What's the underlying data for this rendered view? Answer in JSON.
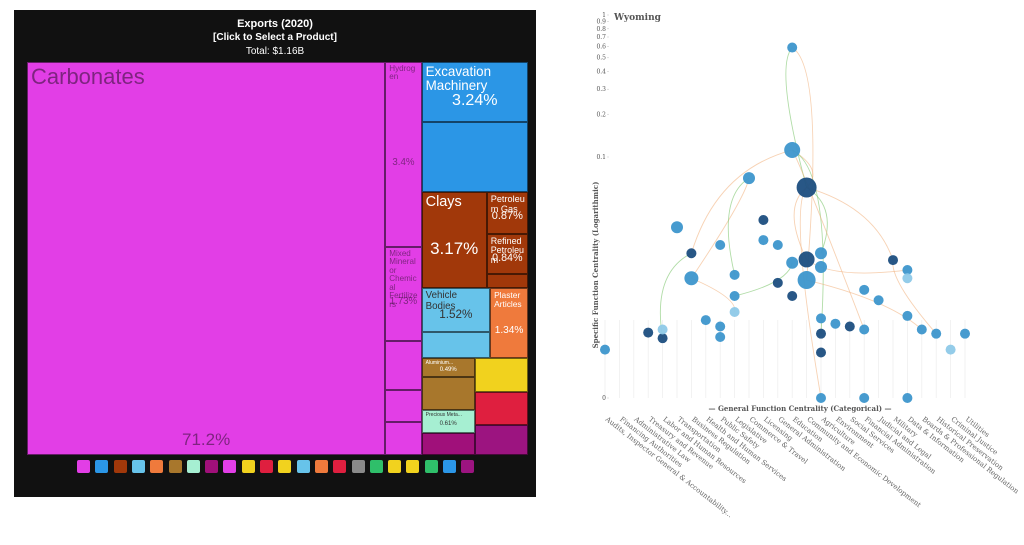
{
  "chart_data": [
    {
      "type": "treemap",
      "title": "Exports (2020)",
      "subtitle": "[Click to Select a Product]",
      "total_label": "Total: $1.16B",
      "categories": [
        "Carbonates",
        "Hydrogen",
        "Mixed Mineral or Chemical Fertilizers",
        null,
        null,
        null,
        "Excavation Machinery",
        null,
        "Clays",
        "Petroleum Gas",
        "Refined Petroleum",
        null,
        "Vehicle Bodies",
        null,
        "Plaster Articles",
        "Aluminium...",
        null,
        "Precious Meta...",
        null,
        null,
        null,
        null
      ],
      "values": [
        71.2,
        3.4,
        1.73,
        0.9,
        0.6,
        0.6,
        3.24,
        3.76,
        3.17,
        0.87,
        0.84,
        0.3,
        1.52,
        0.9,
        1.34,
        0.49,
        0.9,
        0.61,
        0.6,
        0.9,
        0.9,
        0.8
      ],
      "value_labels": [
        "71.2%",
        "3.4%",
        "1.73%",
        null,
        null,
        null,
        "3.24%",
        null,
        "3.17%",
        "0.87%",
        "0.84%",
        null,
        "1.52%",
        null,
        "1.34%",
        "0.49%",
        null,
        "0.61%",
        null,
        null,
        null,
        null
      ],
      "colors": [
        "#e23ee6",
        "#e23ee6",
        "#e23ee6",
        "#e23ee6",
        "#e23ee6",
        "#e23ee6",
        "#2b96e6",
        "#2b96e6",
        "#a1380a",
        "#a1380a",
        "#a1380a",
        "#a1380a",
        "#67c3ea",
        "#67c3ea",
        "#ef7a3c",
        "#a8772c",
        "#a8772c",
        "#a6efd2",
        "#a0107a",
        "#f1d21e",
        "#df1f3f",
        "#9c1480"
      ]
    },
    {
      "type": "scatter",
      "title": "Wyoming",
      "xlabel": "— General Function Centrality (Categorical) —",
      "ylabel": "Specific Function Centrality (Logarithmic)",
      "log_y": true,
      "ylim": [
        0,
        1
      ],
      "yticks": [
        1,
        0.9,
        0.8,
        0.7,
        0.6,
        0.5,
        0.4,
        0.3,
        0.2,
        0.1,
        0
      ],
      "categories": [
        "Audits, Inspector General & Accountability...",
        "Financing Authorities",
        "Administrative Law",
        "Treasury and Revenue",
        "Labor and Human Resources",
        "Transportation",
        "Business Regulation",
        "Health and Human Services",
        "Public Safety",
        "Legislative",
        "Commerce & Travel",
        "Licensing",
        "General Administration",
        "Education",
        "Community and Economic Development",
        "Agriculture",
        "Environment",
        "Social Services",
        "Financial Administration",
        "Judicial and Legal",
        "Military",
        "Data & Information",
        "Boards & Professional Regulation",
        "Historical Preservation",
        "Criminal Justice",
        "Utilities"
      ],
      "x": [
        "Audits, Inspector General & Accountability...",
        "Treasury and Revenue",
        "Labor and Human Resources",
        "Labor and Human Resources",
        "Transportation",
        "Business Regulation",
        "Business Regulation",
        "Health and Human Services",
        "Public Safety",
        "Public Safety",
        "Public Safety",
        "Legislative",
        "Legislative",
        "Legislative",
        "Commerce & Travel",
        "Licensing",
        "Licensing",
        "General Administration",
        "General Administration",
        "Education",
        "Education",
        "Education",
        "Education",
        "Community and Economic Development",
        "Community and Economic Development",
        "Community and Economic Development",
        "Agriculture",
        "Agriculture",
        "Agriculture",
        "Agriculture",
        "Agriculture",
        "Agriculture",
        "Environment",
        "Social Services",
        "Financial Administration",
        "Financial Administration",
        "Financial Administration",
        "Judicial and Legal",
        "Military",
        "Data & Information",
        "Data & Information",
        "Data & Information",
        "Data & Information",
        "Boards & Professional Regulation",
        "Historical Preservation",
        "Criminal Justice",
        "Utilities"
      ],
      "y": [
        0.0044,
        0.0058,
        0.0053,
        0.0061,
        0.032,
        0.021,
        0.014,
        0.0071,
        0.024,
        0.0064,
        0.0054,
        0.0148,
        0.0105,
        0.0081,
        0.071,
        0.036,
        0.026,
        0.024,
        0.013,
        0.112,
        0.59,
        0.018,
        0.0105,
        0.061,
        0.019,
        0.0136,
        0.021,
        0.0168,
        0.0073,
        0.0057,
        0.0042,
        0,
        0.0067,
        0.0064,
        0.0116,
        0.0061,
        0,
        0.0098,
        0.0188,
        0.016,
        0.014,
        0.0076,
        0,
        0.0061,
        0.0057,
        0.0044,
        0.0057
      ],
      "sizes": [
        5,
        5,
        5,
        5,
        6,
        5,
        7,
        5,
        5,
        5,
        5,
        5,
        5,
        5,
        6,
        5,
        5,
        5,
        5,
        8,
        5,
        6,
        5,
        10,
        8,
        9,
        6,
        6,
        5,
        5,
        5,
        5,
        5,
        5,
        5,
        5,
        5,
        5,
        5,
        5,
        5,
        5,
        5,
        5,
        5,
        5,
        5
      ],
      "colors": [
        "#3d96cc",
        "#1c4e80",
        "#1c4e80",
        "#8ec9e8",
        "#3d96cc",
        "#1c4e80",
        "#3d96cc",
        "#3d96cc",
        "#3d96cc",
        "#3d96cc",
        "#3d96cc",
        "#3d96cc",
        "#3d96cc",
        "#8ec9e8",
        "#3d96cc",
        "#1c4e80",
        "#3d96cc",
        "#3d96cc",
        "#1c4e80",
        "#3d96cc",
        "#3d96cc",
        "#3d96cc",
        "#1c4e80",
        "#1c4e80",
        "#1c4e80",
        "#3d96cc",
        "#3d96cc",
        "#3d96cc",
        "#3d96cc",
        "#1c4e80",
        "#1c4e80",
        "#3d96cc",
        "#3d96cc",
        "#1c4e80",
        "#3d96cc",
        "#3d96cc",
        "#3d96cc",
        "#3d96cc",
        "#1c4e80",
        "#3d96cc",
        "#8ec9e8",
        "#3d96cc",
        "#3d96cc",
        "#3d96cc",
        "#3d96cc",
        "#8ec9e8",
        "#3d96cc"
      ]
    }
  ]
}
